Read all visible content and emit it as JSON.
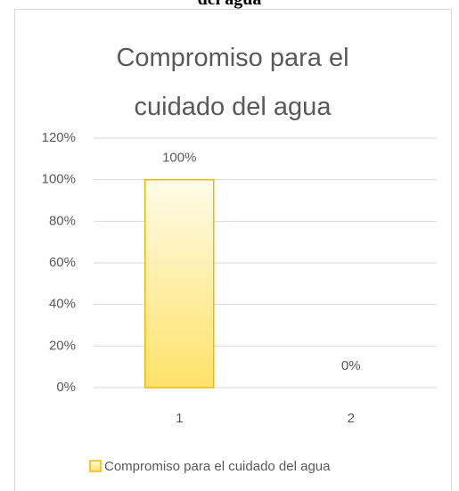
{
  "header_text": "del agua",
  "chart_data": {
    "type": "bar",
    "title": "Compromiso para el cuidado del agua",
    "categories": [
      "1",
      "2"
    ],
    "series": [
      {
        "name": "Compromiso para el cuidado del agua",
        "color": "#ffd84d",
        "values": [
          100,
          0
        ],
        "value_labels": [
          "100%",
          "0%"
        ]
      }
    ],
    "ylim": [
      0,
      120
    ],
    "yticks": [
      {
        "value": 0,
        "label": "0%"
      },
      {
        "value": 20,
        "label": "20%"
      },
      {
        "value": 40,
        "label": "40%"
      },
      {
        "value": 60,
        "label": "60%"
      },
      {
        "value": 80,
        "label": "80%"
      },
      {
        "value": 100,
        "label": "100%"
      },
      {
        "value": 120,
        "label": "120%"
      }
    ],
    "grid": true,
    "legend": "bottom"
  }
}
